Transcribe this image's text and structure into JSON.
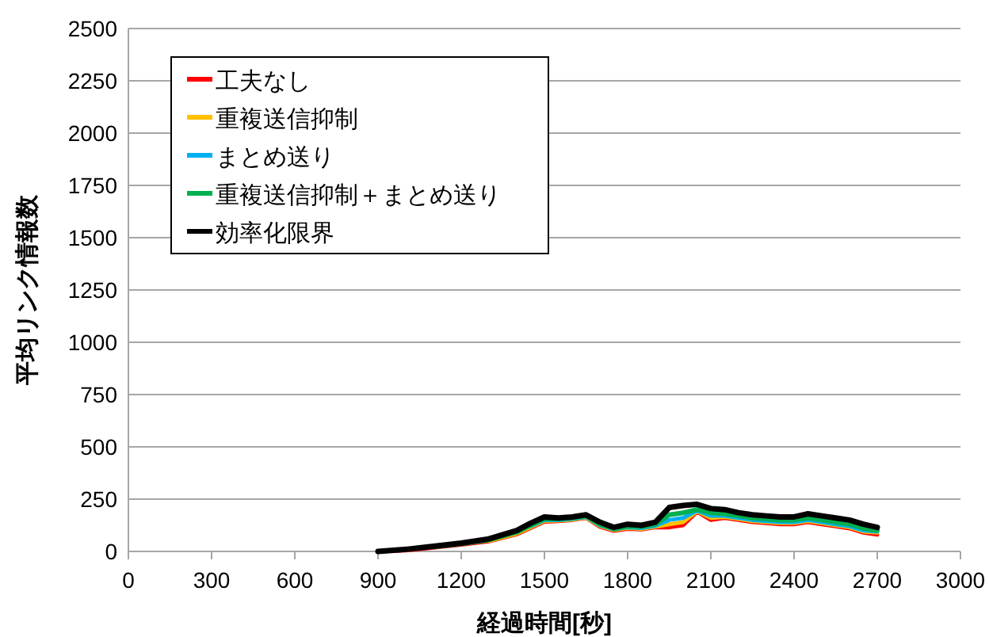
{
  "chart_data": {
    "type": "line",
    "xlabel": "経過時間[秒]",
    "ylabel": "平均リンク情報数",
    "x": [
      900,
      1000,
      1100,
      1200,
      1300,
      1400,
      1450,
      1500,
      1550,
      1600,
      1650,
      1700,
      1750,
      1800,
      1850,
      1900,
      1950,
      2000,
      2050,
      2100,
      2150,
      2200,
      2250,
      2300,
      2350,
      2400,
      2450,
      2500,
      2550,
      2600,
      2650,
      2700
    ],
    "series": [
      {
        "name": "工夫なし",
        "color": "#ff0000",
        "values": [
          0,
          5,
          18,
          32,
          48,
          82,
          112,
          142,
          145,
          150,
          160,
          118,
          98,
          108,
          105,
          115,
          115,
          125,
          190,
          150,
          160,
          150,
          140,
          135,
          130,
          130,
          140,
          130,
          120,
          110,
          90,
          80
        ]
      },
      {
        "name": "重複送信抑制",
        "color": "#ffc000",
        "values": [
          null,
          null,
          null,
          null,
          50,
          85,
          116,
          146,
          148,
          152,
          162,
          122,
          102,
          112,
          108,
          118,
          130,
          140,
          192,
          160,
          165,
          155,
          145,
          140,
          135,
          135,
          145,
          135,
          125,
          115,
          95,
          90
        ]
      },
      {
        "name": "まとめ送り",
        "color": "#00b0f0",
        "values": [
          null,
          null,
          null,
          null,
          null,
          null,
          120,
          150,
          150,
          155,
          165,
          125,
          105,
          115,
          112,
          122,
          150,
          160,
          195,
          170,
          170,
          160,
          150,
          145,
          140,
          140,
          150,
          140,
          130,
          120,
          100,
          95
        ]
      },
      {
        "name": "重複送信抑制＋まとめ送り",
        "color": "#00b050",
        "values": [
          null,
          null,
          22,
          37,
          55,
          92,
          125,
          155,
          155,
          160,
          170,
          130,
          108,
          120,
          118,
          130,
          175,
          185,
          200,
          185,
          180,
          170,
          160,
          155,
          150,
          150,
          160,
          150,
          140,
          130,
          110,
          100
        ]
      },
      {
        "name": "効率化限界",
        "color": "#000000",
        "values": [
          0,
          10,
          25,
          40,
          60,
          100,
          135,
          165,
          160,
          165,
          175,
          140,
          115,
          130,
          125,
          140,
          210,
          220,
          225,
          205,
          200,
          185,
          175,
          170,
          165,
          165,
          180,
          170,
          160,
          150,
          130,
          115
        ]
      }
    ],
    "xlim": [
      0,
      3000
    ],
    "xticks": [
      0,
      300,
      600,
      900,
      1200,
      1500,
      1800,
      2100,
      2400,
      2700,
      3000
    ],
    "ylim": [
      0,
      2500
    ],
    "yticks": [
      0,
      250,
      500,
      750,
      1000,
      1250,
      1500,
      1750,
      2000,
      2250,
      2500
    ],
    "grid": "y",
    "legend": "top left",
    "marker": "none",
    "line_style": "solid"
  }
}
